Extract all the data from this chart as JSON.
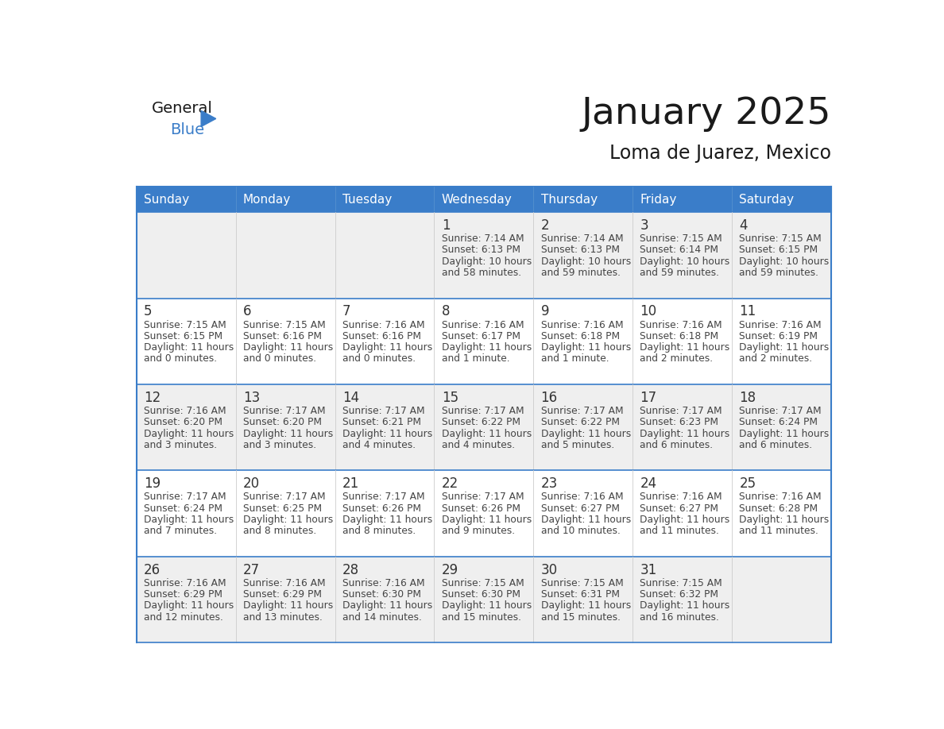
{
  "title": "January 2025",
  "subtitle": "Loma de Juarez, Mexico",
  "days_of_week": [
    "Sunday",
    "Monday",
    "Tuesday",
    "Wednesday",
    "Thursday",
    "Friday",
    "Saturday"
  ],
  "header_bg": "#3A7DC9",
  "header_text": "#FFFFFF",
  "cell_bg_odd": "#EFEFEF",
  "cell_bg_even": "#FFFFFF",
  "cell_border_week": "#3A7DC9",
  "cell_border_col": "#CCCCCC",
  "day_num_color": "#333333",
  "cell_text_color": "#444444",
  "title_color": "#1a1a1a",
  "logo_general_color": "#1a1a1a",
  "logo_blue_color": "#3A7DC9",
  "fig_width": 11.88,
  "fig_height": 9.18,
  "weeks": [
    [
      null,
      null,
      null,
      {
        "day": 1,
        "sunrise": "7:14 AM",
        "sunset": "6:13 PM",
        "daylight": "10 hours and 58 minutes."
      },
      {
        "day": 2,
        "sunrise": "7:14 AM",
        "sunset": "6:13 PM",
        "daylight": "10 hours and 59 minutes."
      },
      {
        "day": 3,
        "sunrise": "7:15 AM",
        "sunset": "6:14 PM",
        "daylight": "10 hours and 59 minutes."
      },
      {
        "day": 4,
        "sunrise": "7:15 AM",
        "sunset": "6:15 PM",
        "daylight": "10 hours and 59 minutes."
      }
    ],
    [
      {
        "day": 5,
        "sunrise": "7:15 AM",
        "sunset": "6:15 PM",
        "daylight": "11 hours and 0 minutes."
      },
      {
        "day": 6,
        "sunrise": "7:15 AM",
        "sunset": "6:16 PM",
        "daylight": "11 hours and 0 minutes."
      },
      {
        "day": 7,
        "sunrise": "7:16 AM",
        "sunset": "6:16 PM",
        "daylight": "11 hours and 0 minutes."
      },
      {
        "day": 8,
        "sunrise": "7:16 AM",
        "sunset": "6:17 PM",
        "daylight": "11 hours and 1 minute."
      },
      {
        "day": 9,
        "sunrise": "7:16 AM",
        "sunset": "6:18 PM",
        "daylight": "11 hours and 1 minute."
      },
      {
        "day": 10,
        "sunrise": "7:16 AM",
        "sunset": "6:18 PM",
        "daylight": "11 hours and 2 minutes."
      },
      {
        "day": 11,
        "sunrise": "7:16 AM",
        "sunset": "6:19 PM",
        "daylight": "11 hours and 2 minutes."
      }
    ],
    [
      {
        "day": 12,
        "sunrise": "7:16 AM",
        "sunset": "6:20 PM",
        "daylight": "11 hours and 3 minutes."
      },
      {
        "day": 13,
        "sunrise": "7:17 AM",
        "sunset": "6:20 PM",
        "daylight": "11 hours and 3 minutes."
      },
      {
        "day": 14,
        "sunrise": "7:17 AM",
        "sunset": "6:21 PM",
        "daylight": "11 hours and 4 minutes."
      },
      {
        "day": 15,
        "sunrise": "7:17 AM",
        "sunset": "6:22 PM",
        "daylight": "11 hours and 4 minutes."
      },
      {
        "day": 16,
        "sunrise": "7:17 AM",
        "sunset": "6:22 PM",
        "daylight": "11 hours and 5 minutes."
      },
      {
        "day": 17,
        "sunrise": "7:17 AM",
        "sunset": "6:23 PM",
        "daylight": "11 hours and 6 minutes."
      },
      {
        "day": 18,
        "sunrise": "7:17 AM",
        "sunset": "6:24 PM",
        "daylight": "11 hours and 6 minutes."
      }
    ],
    [
      {
        "day": 19,
        "sunrise": "7:17 AM",
        "sunset": "6:24 PM",
        "daylight": "11 hours and 7 minutes."
      },
      {
        "day": 20,
        "sunrise": "7:17 AM",
        "sunset": "6:25 PM",
        "daylight": "11 hours and 8 minutes."
      },
      {
        "day": 21,
        "sunrise": "7:17 AM",
        "sunset": "6:26 PM",
        "daylight": "11 hours and 8 minutes."
      },
      {
        "day": 22,
        "sunrise": "7:17 AM",
        "sunset": "6:26 PM",
        "daylight": "11 hours and 9 minutes."
      },
      {
        "day": 23,
        "sunrise": "7:16 AM",
        "sunset": "6:27 PM",
        "daylight": "11 hours and 10 minutes."
      },
      {
        "day": 24,
        "sunrise": "7:16 AM",
        "sunset": "6:27 PM",
        "daylight": "11 hours and 11 minutes."
      },
      {
        "day": 25,
        "sunrise": "7:16 AM",
        "sunset": "6:28 PM",
        "daylight": "11 hours and 11 minutes."
      }
    ],
    [
      {
        "day": 26,
        "sunrise": "7:16 AM",
        "sunset": "6:29 PM",
        "daylight": "11 hours and 12 minutes."
      },
      {
        "day": 27,
        "sunrise": "7:16 AM",
        "sunset": "6:29 PM",
        "daylight": "11 hours and 13 minutes."
      },
      {
        "day": 28,
        "sunrise": "7:16 AM",
        "sunset": "6:30 PM",
        "daylight": "11 hours and 14 minutes."
      },
      {
        "day": 29,
        "sunrise": "7:15 AM",
        "sunset": "6:30 PM",
        "daylight": "11 hours and 15 minutes."
      },
      {
        "day": 30,
        "sunrise": "7:15 AM",
        "sunset": "6:31 PM",
        "daylight": "11 hours and 15 minutes."
      },
      {
        "day": 31,
        "sunrise": "7:15 AM",
        "sunset": "6:32 PM",
        "daylight": "11 hours and 16 minutes."
      },
      null
    ]
  ]
}
